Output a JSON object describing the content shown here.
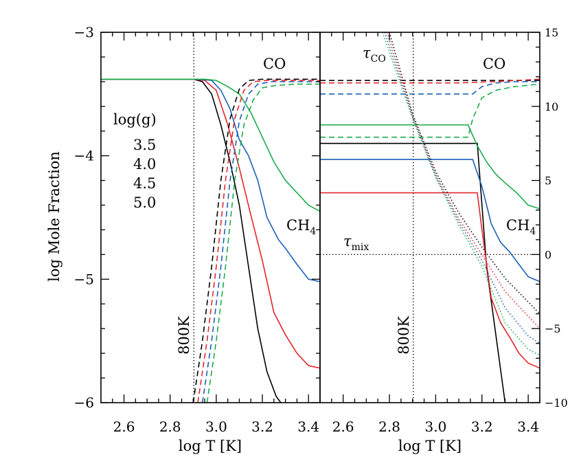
{
  "colors": {
    "3.5": "#000000",
    "4.0": "#e3252b",
    "4.5": "#1a5fb8",
    "5.0": "#1aab4a"
  },
  "chart_data": [
    {
      "type": "line",
      "panel": "left",
      "xlabel": "log T [K]",
      "ylabel": "log Mole Fraction",
      "xlim": [
        2.5,
        3.45
      ],
      "ylim": [
        -6,
        -3
      ],
      "xticks": [
        2.6,
        2.8,
        3.0,
        3.2,
        3.4
      ],
      "xtick_labels": [
        "2.6",
        "2.8",
        "3.0",
        "3.2",
        "3.4"
      ],
      "yticks": [
        -6,
        -5,
        -4,
        -3
      ],
      "ytick_labels": [
        "−6",
        "−5",
        "−4",
        "−3"
      ],
      "legend": {
        "title": "log(g)",
        "entries": [
          "3.5",
          "4.0",
          "4.5",
          "5.0"
        ],
        "placement": "left"
      },
      "annotations": {
        "co": "CO",
        "ch4": "CH",
        "ch4_sub": "4",
        "vline": "800K"
      },
      "vline_x": 2.903,
      "series": [
        {
          "name": "3.5",
          "species": "CH4",
          "style": "solid",
          "x": [
            2.5,
            2.85,
            2.9,
            2.94,
            2.98,
            3.02,
            3.06,
            3.1,
            3.14,
            3.18,
            3.22,
            3.26,
            3.28
          ],
          "y": [
            -3.38,
            -3.38,
            -3.38,
            -3.4,
            -3.5,
            -3.75,
            -4.05,
            -4.4,
            -4.9,
            -5.4,
            -5.75,
            -5.95,
            -6.0
          ]
        },
        {
          "name": "4.0",
          "species": "CH4",
          "style": "solid",
          "x": [
            2.5,
            2.9,
            2.95,
            3.0,
            3.05,
            3.1,
            3.15,
            3.2,
            3.25,
            3.3,
            3.35,
            3.4,
            3.45
          ],
          "y": [
            -3.38,
            -3.38,
            -3.39,
            -3.47,
            -3.75,
            -4.1,
            -4.48,
            -4.85,
            -5.27,
            -5.45,
            -5.6,
            -5.7,
            -5.72
          ]
        },
        {
          "name": "4.5",
          "species": "CH4",
          "style": "solid",
          "x": [
            2.5,
            2.92,
            2.98,
            3.02,
            3.06,
            3.1,
            3.14,
            3.18,
            3.22,
            3.27,
            3.3,
            3.35,
            3.4,
            3.45
          ],
          "y": [
            -3.38,
            -3.38,
            -3.39,
            -3.47,
            -3.62,
            -3.87,
            -4.0,
            -4.2,
            -4.5,
            -4.68,
            -4.75,
            -4.88,
            -5.0,
            -5.02
          ]
        },
        {
          "name": "5.0",
          "species": "CH4",
          "style": "solid",
          "x": [
            2.5,
            2.95,
            3.0,
            3.05,
            3.1,
            3.15,
            3.2,
            3.25,
            3.3,
            3.35,
            3.4,
            3.45
          ],
          "y": [
            -3.38,
            -3.38,
            -3.39,
            -3.44,
            -3.5,
            -3.65,
            -3.85,
            -4.05,
            -4.2,
            -4.3,
            -4.4,
            -4.45
          ]
        },
        {
          "name": "3.5",
          "species": "CO",
          "style": "dashed",
          "x": [
            2.9,
            2.94,
            2.98,
            3.02,
            3.06,
            3.1,
            3.14,
            3.2,
            3.3,
            3.45
          ],
          "y": [
            -6.0,
            -5.5,
            -4.9,
            -4.2,
            -3.7,
            -3.46,
            -3.39,
            -3.38,
            -3.38,
            -3.38
          ]
        },
        {
          "name": "4.0",
          "species": "CO",
          "style": "dashed",
          "x": [
            2.92,
            2.96,
            3.0,
            3.04,
            3.08,
            3.12,
            3.16,
            3.22,
            3.3,
            3.45
          ],
          "y": [
            -6.0,
            -5.5,
            -4.9,
            -4.2,
            -3.7,
            -3.47,
            -3.4,
            -3.39,
            -3.39,
            -3.39
          ]
        },
        {
          "name": "4.5",
          "species": "CO",
          "style": "dashed",
          "x": [
            2.94,
            2.98,
            3.02,
            3.06,
            3.1,
            3.14,
            3.18,
            3.24,
            3.32,
            3.45
          ],
          "y": [
            -6.0,
            -5.5,
            -4.9,
            -4.2,
            -3.72,
            -3.5,
            -3.42,
            -3.4,
            -3.4,
            -3.4
          ]
        },
        {
          "name": "5.0",
          "species": "CO",
          "style": "dashed",
          "x": [
            2.96,
            3.0,
            3.04,
            3.08,
            3.12,
            3.16,
            3.2,
            3.26,
            3.34,
            3.45
          ],
          "y": [
            -6.0,
            -5.5,
            -4.9,
            -4.2,
            -3.75,
            -3.55,
            -3.45,
            -3.43,
            -3.42,
            -3.42
          ]
        }
      ]
    },
    {
      "type": "line",
      "panel": "right",
      "xlabel": "log T [K]",
      "xlim": [
        2.5,
        3.45
      ],
      "ylim": [
        -10,
        15
      ],
      "xticks": [
        2.6,
        2.8,
        3.0,
        3.2,
        3.4
      ],
      "xtick_labels": [
        "2.6",
        "2.8",
        "3.0",
        "3.2",
        "3.4"
      ],
      "yticks": [
        -10,
        -5,
        0,
        5,
        10,
        15
      ],
      "ytick_labels": [
        "−10",
        "−5",
        "0",
        "5",
        "10",
        "15"
      ],
      "annotations": {
        "co": "CO",
        "ch4": "CH",
        "ch4_sub": "4",
        "vline": "800K",
        "tau_co": "τ",
        "tau_co_sub": "CO",
        "tau_mix": "τ",
        "tau_mix_sub": "mix"
      },
      "vline_x": 2.903,
      "hline_y": 0,
      "series": [
        {
          "name": "3.5",
          "species": "CH4",
          "style": "solid",
          "x": [
            2.5,
            3.18,
            3.22,
            3.26,
            3.3
          ],
          "y": [
            -3.9,
            -3.9,
            -4.9,
            -5.45,
            -6.0
          ]
        },
        {
          "name": "4.0",
          "species": "CH4",
          "style": "solid",
          "x": [
            2.5,
            3.18,
            3.2,
            3.24,
            3.28,
            3.32,
            3.36,
            3.4,
            3.45
          ],
          "y": [
            -4.3,
            -4.3,
            -4.6,
            -5.15,
            -5.35,
            -5.47,
            -5.6,
            -5.68,
            -5.72
          ]
        },
        {
          "name": "4.5",
          "species": "CH4",
          "style": "solid",
          "x": [
            2.5,
            3.16,
            3.2,
            3.24,
            3.28,
            3.32,
            3.36,
            3.4,
            3.45
          ],
          "y": [
            -4.03,
            -4.03,
            -4.25,
            -4.55,
            -4.7,
            -4.78,
            -4.88,
            -4.98,
            -5.02
          ]
        },
        {
          "name": "5.0",
          "species": "CH4",
          "style": "solid",
          "x": [
            2.5,
            3.14,
            3.18,
            3.22,
            3.26,
            3.3,
            3.35,
            3.4,
            3.45
          ],
          "y": [
            -3.75,
            -3.75,
            -3.92,
            -4.05,
            -4.15,
            -4.22,
            -4.3,
            -4.4,
            -4.43
          ]
        },
        {
          "name": "3.5",
          "species": "CO",
          "style": "dashed",
          "x": [
            2.5,
            2.8,
            2.95,
            3.1,
            3.25,
            3.45
          ],
          "y": [
            -3.39,
            -3.39,
            -3.39,
            -3.39,
            -3.39,
            -3.39
          ]
        },
        {
          "name": "4.0",
          "species": "CO",
          "style": "dashed",
          "x": [
            2.5,
            2.8,
            2.95,
            3.1,
            3.25,
            3.45
          ],
          "y": [
            -3.41,
            -3.41,
            -3.41,
            -3.41,
            -3.4,
            -3.38
          ]
        },
        {
          "name": "4.5",
          "species": "CO",
          "style": "dashed",
          "x": [
            2.5,
            3.16,
            3.2,
            3.26,
            3.34,
            3.45
          ],
          "y": [
            -3.5,
            -3.5,
            -3.44,
            -3.41,
            -3.4,
            -3.4
          ]
        },
        {
          "name": "5.0",
          "species": "CO",
          "style": "dashed",
          "x": [
            2.5,
            3.14,
            3.16,
            3.2,
            3.26,
            3.34,
            3.45
          ],
          "y": [
            -3.85,
            -3.85,
            -3.7,
            -3.53,
            -3.47,
            -3.44,
            -3.42
          ]
        },
        {
          "name": "3.5",
          "species": "tau_CO",
          "style": "dotted",
          "axis": "right",
          "x": [
            2.8,
            2.9,
            3.0,
            3.1,
            3.2,
            3.3,
            3.45
          ],
          "y": [
            15,
            9.5,
            5.6,
            2.8,
            0.5,
            -1.6,
            -4.0
          ]
        },
        {
          "name": "4.0",
          "species": "tau_CO",
          "style": "dotted",
          "axis": "right",
          "x": [
            2.79,
            2.9,
            3.0,
            3.1,
            3.2,
            3.3,
            3.45
          ],
          "y": [
            15,
            9.4,
            5.4,
            2.4,
            0.0,
            -2.5,
            -5.0
          ]
        },
        {
          "name": "4.5",
          "species": "tau_CO",
          "style": "dotted",
          "axis": "right",
          "x": [
            2.78,
            2.9,
            3.0,
            3.1,
            3.2,
            3.3,
            3.4,
            3.45
          ],
          "y": [
            15,
            9.3,
            5.3,
            2.2,
            -0.4,
            -3.6,
            -5.5,
            -6.0
          ]
        },
        {
          "name": "5.0",
          "species": "tau_CO",
          "style": "dotted",
          "axis": "right",
          "x": [
            2.77,
            2.9,
            3.0,
            3.1,
            3.2,
            3.3,
            3.4,
            3.45
          ],
          "y": [
            15,
            9.2,
            5.2,
            2.0,
            -0.8,
            -4.6,
            -6.4,
            -6.8
          ]
        }
      ]
    }
  ]
}
